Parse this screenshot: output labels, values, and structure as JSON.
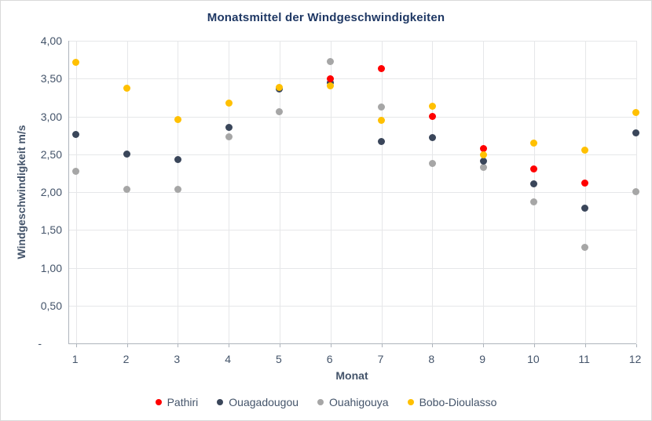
{
  "window": {
    "background_color": "#FFFFFF",
    "border_color": "#D9D9D9"
  },
  "colors": {
    "title_text": "#1F3864",
    "axis_text": "#44546A",
    "gridline": "#E6E7E9",
    "axis_line": "#AEB4BC"
  },
  "chart_data": {
    "type": "scatter",
    "title": "Monatsmittel der Windgeschwindigkeiten",
    "xlabel": "Monat",
    "ylabel": "Windgeschwindigkeit m/s",
    "grid": true,
    "legend_position": "bottom",
    "xlim": [
      0.87,
      12
    ],
    "ylim": [
      0,
      4
    ],
    "x": [
      1,
      2,
      3,
      4,
      5,
      6,
      7,
      8,
      9,
      10,
      11,
      12
    ],
    "x_tick_labels": [
      "1",
      "2",
      "3",
      "4",
      "5",
      "6",
      "7",
      "8",
      "9",
      "10",
      "11",
      "12"
    ],
    "y_ticks": [
      {
        "label": "4,00",
        "value": 4.0
      },
      {
        "label": "3,50",
        "value": 3.5
      },
      {
        "label": "3,00",
        "value": 3.0
      },
      {
        "label": "2,50",
        "value": 2.5
      },
      {
        "label": "2,00",
        "value": 2.0
      },
      {
        "label": "1,50",
        "value": 1.5
      },
      {
        "label": "1,00",
        "value": 1.0
      },
      {
        "label": "0,50",
        "value": 0.5
      },
      {
        "label": "-",
        "value": 0
      }
    ],
    "series": [
      {
        "name": "Pathiri",
        "color": "#FF0000",
        "values": [
          null,
          null,
          null,
          null,
          null,
          3.5,
          3.63,
          3.0,
          2.58,
          2.31,
          2.12,
          null
        ]
      },
      {
        "name": "Ouagadougou",
        "color": "#3A465A",
        "values": [
          2.76,
          2.5,
          2.43,
          2.85,
          3.36,
          3.45,
          2.67,
          2.72,
          2.41,
          2.11,
          1.79,
          2.78
        ]
      },
      {
        "name": "Ouahigouya",
        "color": "#A6A6A6",
        "values": [
          2.27,
          2.04,
          2.04,
          2.73,
          3.06,
          3.73,
          3.12,
          2.38,
          2.33,
          1.87,
          1.27,
          2.01
        ]
      },
      {
        "name": "Bobo-Dioulasso",
        "color": "#FFC000",
        "values": [
          3.71,
          3.37,
          2.96,
          3.18,
          3.38,
          3.4,
          2.95,
          3.13,
          2.49,
          2.65,
          2.55,
          3.05
        ]
      }
    ],
    "draw_order": [
      "Ouahigouya",
      "Ouagadougou",
      "Pathiri",
      "Bobo-Dioulasso"
    ]
  }
}
